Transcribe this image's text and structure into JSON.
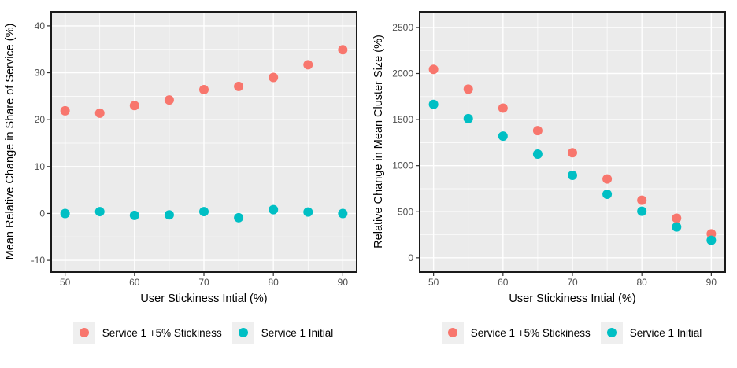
{
  "colors": {
    "panel_background": "#EBEBEB",
    "grid_major": "#FFFFFF",
    "grid_minor": "#FFFFFF",
    "panel_border": "#1a1a1a",
    "tick_mark": "#333333",
    "tick_label": "#4d4d4d",
    "axis_title": "#000000",
    "legend_key_background": "#efefef",
    "series_red": "#F8766D",
    "series_teal": "#00BFC4"
  },
  "chart_data": [
    {
      "type": "scatter",
      "title": "",
      "xlabel": "User Stickiness Intial (%)",
      "ylabel": "Mean Relative Change in Share of Service (%)",
      "x": [
        50,
        55,
        60,
        65,
        70,
        75,
        80,
        85,
        90
      ],
      "series": [
        {
          "name": "Service 1 +5% Stickiness",
          "color": "#F8766D",
          "values": [
            21.9,
            21.4,
            23.0,
            24.2,
            26.4,
            27.1,
            29.0,
            31.7,
            34.9
          ]
        },
        {
          "name": "Service 1 Initial",
          "color": "#00BFC4",
          "values": [
            0.0,
            0.4,
            -0.4,
            -0.3,
            0.4,
            -0.9,
            0.8,
            0.3,
            0.0
          ]
        }
      ],
      "xlim": [
        48,
        92
      ],
      "ylim": [
        -12.5,
        43
      ],
      "x_breaks": [
        50,
        60,
        70,
        80,
        90
      ],
      "x_minor": [
        55,
        65,
        75,
        85
      ],
      "y_breaks": [
        -10,
        0,
        10,
        20,
        30,
        40
      ],
      "y_minor": [
        -5,
        5,
        15,
        25,
        35
      ],
      "grid": true,
      "legend_position": "bottom"
    },
    {
      "type": "scatter",
      "title": "",
      "xlabel": "User Stickiness Intial (%)",
      "ylabel": "Relative Change in Mean Cluster Size (%)",
      "x": [
        50,
        55,
        60,
        65,
        70,
        75,
        80,
        85,
        90
      ],
      "series": [
        {
          "name": "Service 1 +5% Stickiness",
          "color": "#F8766D",
          "values": [
            2045,
            1830,
            1625,
            1380,
            1140,
            855,
            625,
            430,
            260
          ]
        },
        {
          "name": "Service 1 Initial",
          "color": "#00BFC4",
          "values": [
            1665,
            1510,
            1320,
            1125,
            895,
            690,
            505,
            335,
            190
          ]
        }
      ],
      "xlim": [
        48,
        92
      ],
      "ylim": [
        -155,
        2670
      ],
      "x_breaks": [
        50,
        60,
        70,
        80,
        90
      ],
      "x_minor": [
        55,
        65,
        75,
        85
      ],
      "y_breaks": [
        0,
        500,
        1000,
        1500,
        2000,
        2500
      ],
      "y_minor": [
        250,
        750,
        1250,
        1750,
        2250
      ],
      "grid": true,
      "legend_position": "bottom"
    }
  ]
}
